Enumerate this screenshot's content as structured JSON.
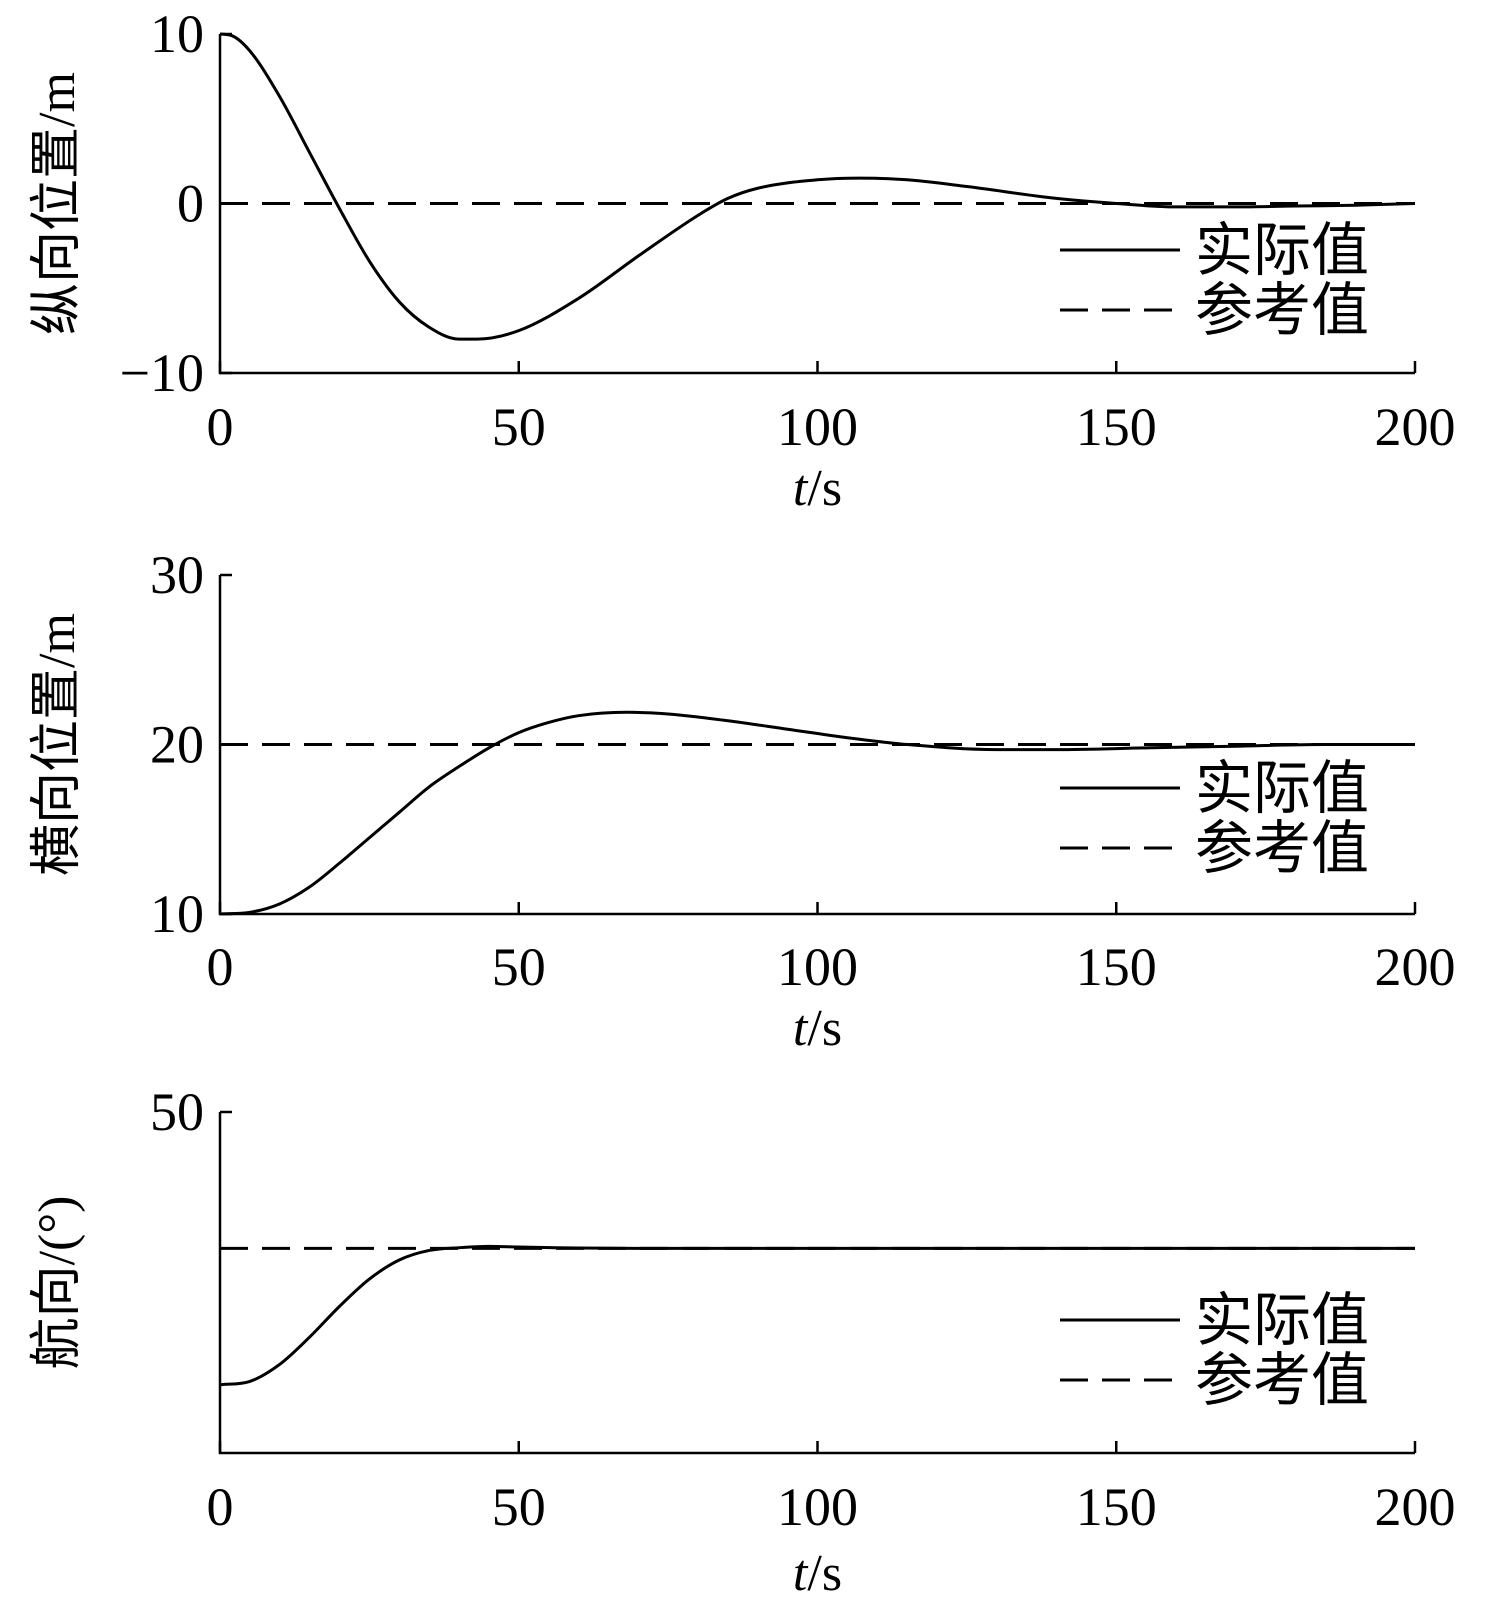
{
  "chart_data": [
    {
      "type": "line",
      "xlabel": "t/s",
      "ylabel": "纵向位置/m",
      "xlim": [
        0,
        200
      ],
      "ylim": [
        -10,
        10
      ],
      "xticks": [
        "0",
        "50",
        "100",
        "150",
        "200"
      ],
      "yticks": [
        "−10",
        "0",
        "10"
      ],
      "ytick_values": [
        -10,
        0,
        10
      ],
      "legend": [
        "实际值",
        "参考值"
      ],
      "legend_position": "lower-right",
      "series": [
        {
          "name": "实际值",
          "style": "solid",
          "x": [
            0,
            2,
            5,
            10,
            15,
            20,
            25,
            30,
            35,
            40,
            43,
            50,
            60,
            70,
            80,
            85,
            90,
            100,
            107,
            115,
            125,
            140,
            150,
            160,
            170,
            180,
            190,
            200
          ],
          "y": [
            10,
            9.9,
            9.0,
            6.3,
            3.0,
            -0.3,
            -3.4,
            -5.8,
            -7.3,
            -8.0,
            -8.0,
            -7.5,
            -5.6,
            -3.1,
            -0.7,
            0.3,
            0.9,
            1.4,
            1.5,
            1.4,
            1.0,
            0.3,
            0.0,
            -0.2,
            -0.2,
            -0.15,
            -0.1,
            0.0
          ]
        },
        {
          "name": "参考值",
          "style": "dashed",
          "x": [
            0,
            200
          ],
          "y": [
            0,
            0
          ]
        }
      ]
    },
    {
      "type": "line",
      "xlabel": "t/s",
      "ylabel": "横向位置/m",
      "xlim": [
        0,
        200
      ],
      "ylim": [
        10,
        30
      ],
      "xticks": [
        "0",
        "50",
        "100",
        "150",
        "200"
      ],
      "yticks": [
        "10",
        "20",
        "30"
      ],
      "ytick_values": [
        10,
        20,
        30
      ],
      "legend": [
        "实际值",
        "参考值"
      ],
      "legend_position": "lower-right",
      "series": [
        {
          "name": "实际值",
          "style": "solid",
          "x": [
            0,
            5,
            10,
            15,
            20,
            25,
            30,
            35,
            40,
            45,
            50,
            55,
            60,
            68,
            75,
            85,
            95,
            105,
            115,
            130,
            140,
            155,
            170,
            185,
            200
          ],
          "y": [
            10,
            10.1,
            10.6,
            11.6,
            13.0,
            14.5,
            16.0,
            17.5,
            18.7,
            19.8,
            20.7,
            21.3,
            21.7,
            21.9,
            21.8,
            21.4,
            20.9,
            20.4,
            20.0,
            19.7,
            19.7,
            19.8,
            19.9,
            20.0,
            20.0
          ]
        },
        {
          "name": "参考值",
          "style": "dashed",
          "x": [
            0,
            200
          ],
          "y": [
            20,
            20
          ]
        }
      ]
    },
    {
      "type": "line",
      "xlabel": "t/s",
      "ylabel": "航向/(°)",
      "xlim": [
        0,
        200
      ],
      "ylim": [
        0,
        50
      ],
      "xticks": [
        "0",
        "50",
        "100",
        "150",
        "200"
      ],
      "yticks": [
        "50"
      ],
      "ytick_values": [
        50
      ],
      "legend": [
        "实际值",
        "参考值"
      ],
      "legend_position": "lower-right",
      "series": [
        {
          "name": "实际值",
          "style": "solid",
          "x": [
            0,
            5,
            10,
            15,
            20,
            25,
            30,
            35,
            40,
            45,
            50,
            60,
            80,
            100,
            150,
            200
          ],
          "y": [
            10,
            10.5,
            13,
            17,
            21.5,
            25.5,
            28.3,
            29.7,
            30.1,
            30.3,
            30.2,
            30.05,
            30,
            30,
            30,
            30
          ]
        },
        {
          "name": "参考值",
          "style": "dashed",
          "x": [
            0,
            200
          ],
          "y": [
            30,
            30
          ]
        }
      ]
    }
  ]
}
